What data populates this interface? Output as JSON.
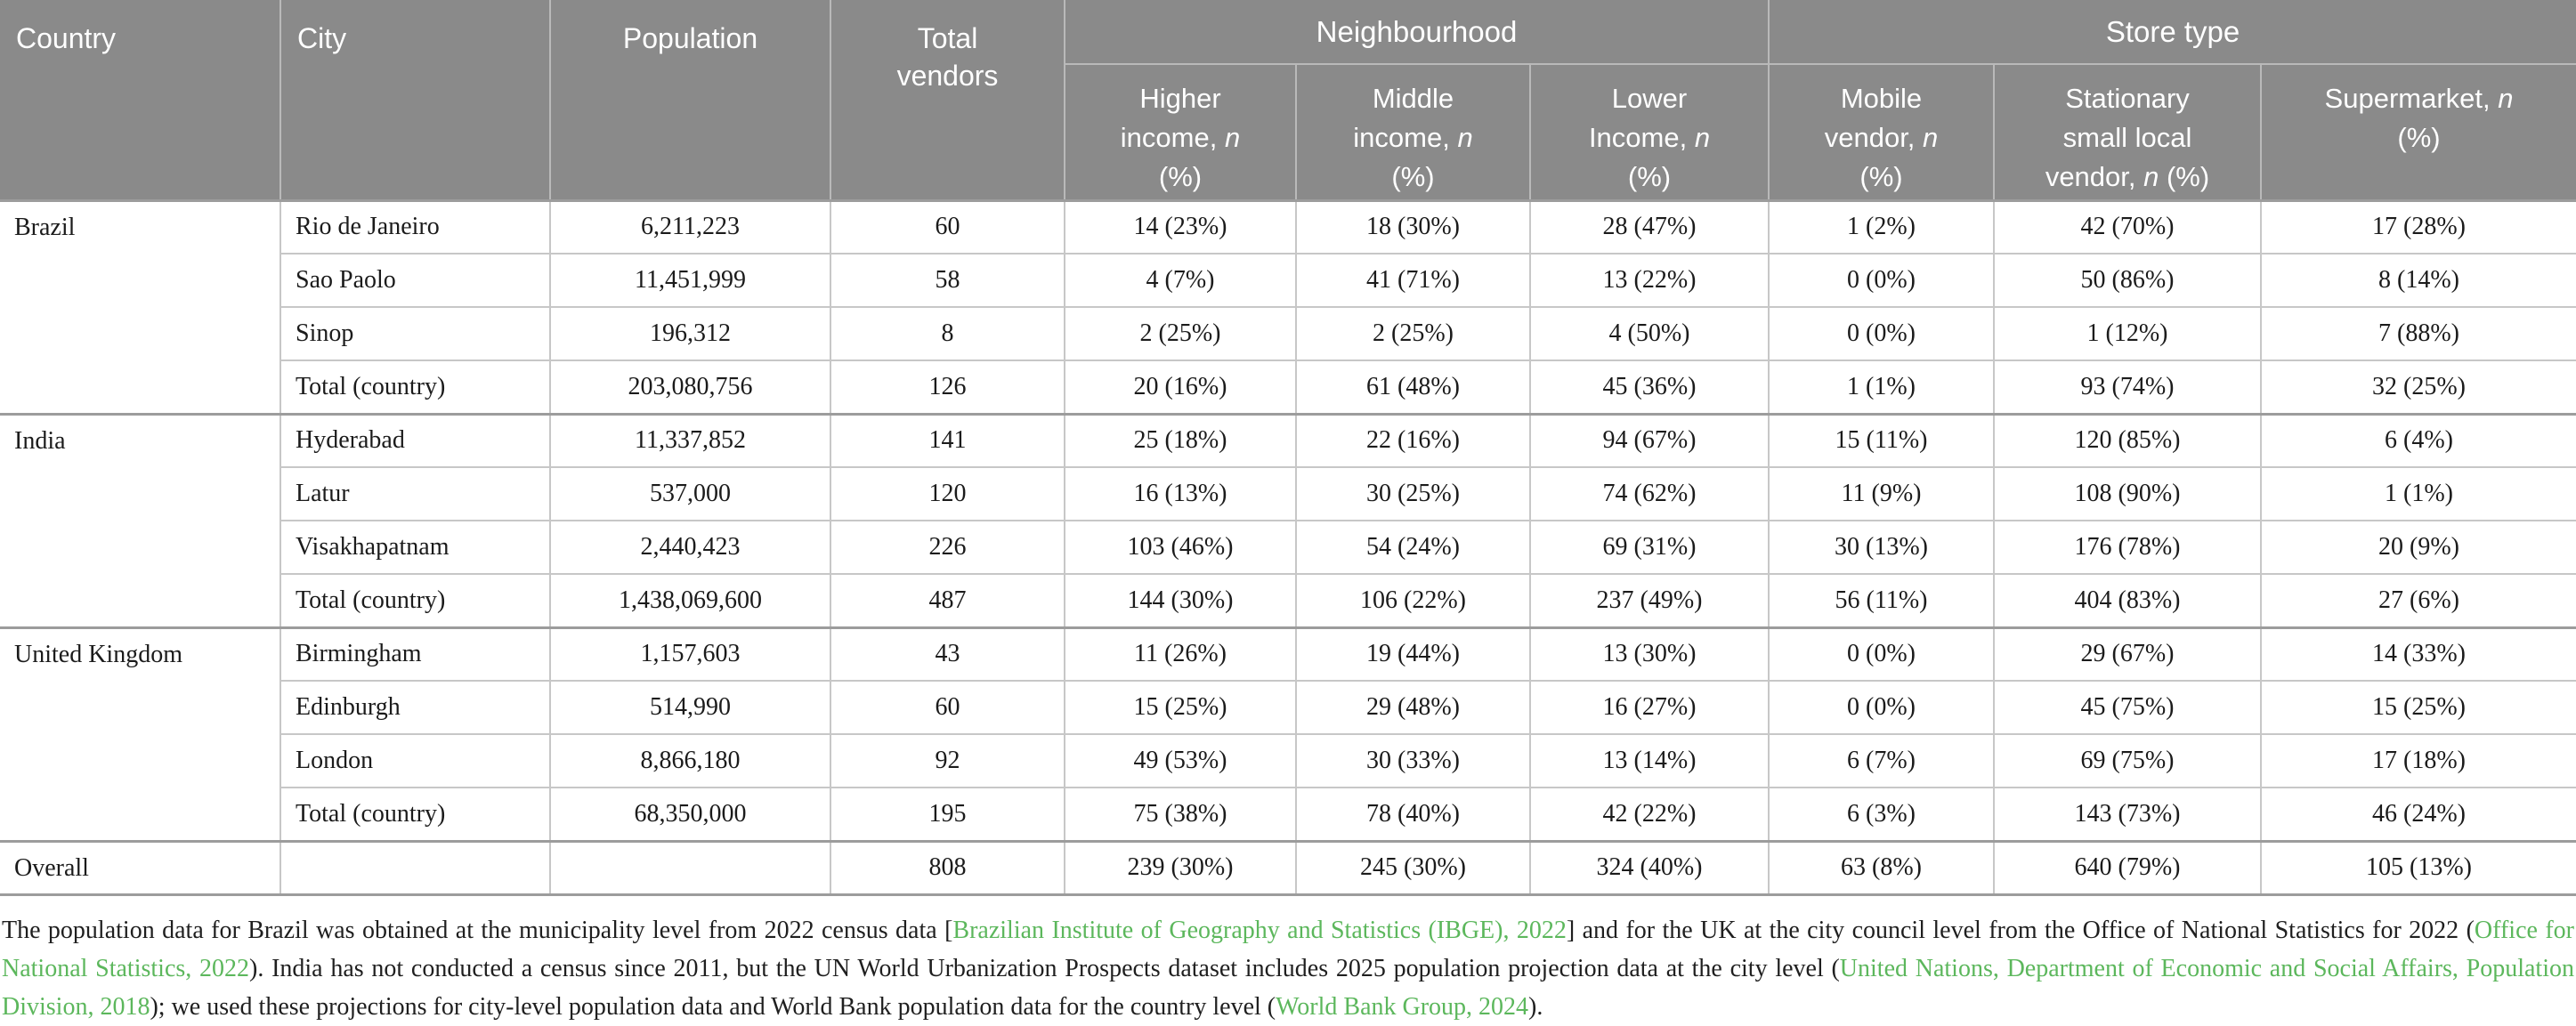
{
  "colors": {
    "header_background": "#8a8a8a",
    "header_divider": "#b9b9b9",
    "row_divider": "#c7c7c7",
    "group_divider": "#9c9c9c",
    "body_text": "#1b1b1b",
    "citation_link_green": "#5cb75c"
  },
  "table": {
    "columns": [
      "Country",
      "City",
      "Population",
      "Total vendors"
    ],
    "groups": [
      {
        "label": "Neighbourhood"
      },
      {
        "label": "Store type"
      }
    ],
    "sub": [
      {
        "pre": "Higher income, ",
        "it": "n",
        "post": " (%)"
      },
      {
        "pre": "Middle income, ",
        "it": "n",
        "post": " (%)"
      },
      {
        "pre": "Lower Income, ",
        "it": "n",
        "post": " (%)"
      },
      {
        "pre": "Mobile vendor, ",
        "it": "n",
        "post": " (%)"
      },
      {
        "pre": "Stationary small local vendor, ",
        "it": "n",
        "post": " (%)"
      },
      {
        "pre": "Supermarket, ",
        "it": "n",
        "post": " (%)"
      }
    ],
    "sections": [
      {
        "country": "Brazil",
        "rows": [
          [
            "Rio de Janeiro",
            "6,211,223",
            "60",
            "14 (23%)",
            "18 (30%)",
            "28 (47%)",
            "1 (2%)",
            "42 (70%)",
            "17 (28%)"
          ],
          [
            "Sao Paolo",
            "11,451,999",
            "58",
            "4 (7%)",
            "41 (71%)",
            "13 (22%)",
            "0 (0%)",
            "50 (86%)",
            "8 (14%)"
          ],
          [
            "Sinop",
            "196,312",
            "8",
            "2 (25%)",
            "2 (25%)",
            "4 (50%)",
            "0 (0%)",
            "1 (12%)",
            "7 (88%)"
          ],
          [
            "Total (country)",
            "203,080,756",
            "126",
            "20 (16%)",
            "61 (48%)",
            "45 (36%)",
            "1 (1%)",
            "93 (74%)",
            "32 (25%)"
          ]
        ]
      },
      {
        "country": "India",
        "rows": [
          [
            "Hyderabad",
            "11,337,852",
            "141",
            "25 (18%)",
            "22 (16%)",
            "94 (67%)",
            "15 (11%)",
            "120 (85%)",
            "6 (4%)"
          ],
          [
            "Latur",
            "537,000",
            "120",
            "16 (13%)",
            "30 (25%)",
            "74 (62%)",
            "11 (9%)",
            "108 (90%)",
            "1 (1%)"
          ],
          [
            "Visakhapatnam",
            "2,440,423",
            "226",
            "103 (46%)",
            "54 (24%)",
            "69 (31%)",
            "30 (13%)",
            "176 (78%)",
            "20 (9%)"
          ],
          [
            "Total (country)",
            "1,438,069,600",
            "487",
            "144 (30%)",
            "106 (22%)",
            "237 (49%)",
            "56 (11%)",
            "404 (83%)",
            "27 (6%)"
          ]
        ]
      },
      {
        "country": "United Kingdom",
        "rows": [
          [
            "Birmingham",
            "1,157,603",
            "43",
            "11 (26%)",
            "19 (44%)",
            "13 (30%)",
            "0 (0%)",
            "29 (67%)",
            "14 (33%)"
          ],
          [
            "Edinburgh",
            "514,990",
            "60",
            "15 (25%)",
            "29 (48%)",
            "16 (27%)",
            "0 (0%)",
            "45 (75%)",
            "15 (25%)"
          ],
          [
            "London",
            "8,866,180",
            "92",
            "49 (53%)",
            "30 (33%)",
            "13 (14%)",
            "6 (7%)",
            "69 (75%)",
            "17 (18%)"
          ],
          [
            "Total (country)",
            "68,350,000",
            "195",
            "75 (38%)",
            "78 (40%)",
            "42 (22%)",
            "6 (3%)",
            "143 (73%)",
            "46 (24%)"
          ]
        ]
      }
    ],
    "overall": {
      "label": "Overall",
      "row": [
        "",
        "",
        "808",
        "239 (30%)",
        "245 (30%)",
        "324 (40%)",
        "63 (8%)",
        "640 (79%)",
        "105 (13%)"
      ]
    }
  },
  "footnote": {
    "segments": [
      {
        "text": "The population data for Brazil was obtained at the municipality level from 2022 census data [",
        "link": false
      },
      {
        "text": "Brazilian Institute of Geography and Statistics (IBGE), 2022",
        "link": true
      },
      {
        "text": "] and for the UK at the city council level from the Office of National Statistics for 2022 (",
        "link": false
      },
      {
        "text": "Office for National Statistics, 2022",
        "link": true
      },
      {
        "text": "). India has not conducted a census since 2011, but the UN World Urbanization Prospects dataset includes 2025 population projection data at the city level (",
        "link": false
      },
      {
        "text": "United Nations, Department of Economic and Social Affairs, Population Division, 2018",
        "link": true
      },
      {
        "text": "); we used these projections for city-level population data and World Bank population data for the country level (",
        "link": false
      },
      {
        "text": "World Bank Group, 2024",
        "link": true
      },
      {
        "text": ").",
        "link": false
      }
    ]
  }
}
